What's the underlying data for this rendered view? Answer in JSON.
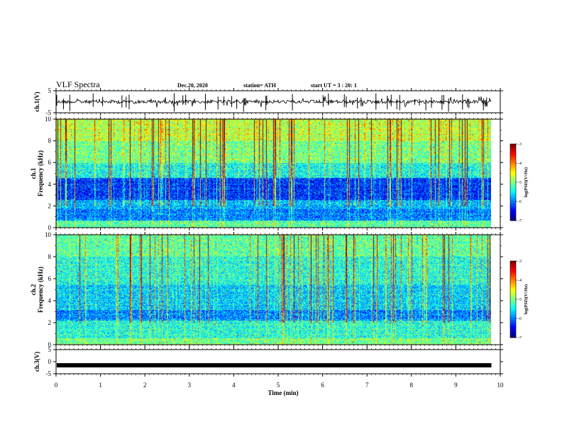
{
  "header": {
    "title": "VLF Spectra",
    "date": "Dec.20, 2020",
    "station": "station= ATH",
    "start": "start  UT =   3 : 20: 1"
  },
  "chart_data": [
    {
      "type": "line",
      "panel": "ch1-waveform",
      "ylabel": "ch.1(V)",
      "xlim": [
        0,
        10
      ],
      "ylim": [
        -5,
        5
      ],
      "yticks": [
        "5",
        "-5"
      ],
      "trace_level": 0,
      "data_end": 9.8
    },
    {
      "type": "heatmap",
      "panel": "ch1-spectrogram",
      "ylabel": "ch.1\nFrequency (kHz)",
      "xlim": [
        0,
        10
      ],
      "ylim": [
        0,
        10
      ],
      "yticks": [
        "0",
        "2",
        "4",
        "6",
        "8",
        "10"
      ],
      "data_end": 9.8,
      "colorscale": [
        "#000080",
        "#0000ff",
        "#0080ff",
        "#00ffff",
        "#80ff80",
        "#ffff00",
        "#ff8000",
        "#ff0000",
        "#800000"
      ],
      "colorbar": {
        "range": [
          -7,
          -3
        ],
        "ticks": [
          "-3",
          "-4",
          "-5",
          "-6",
          "-7"
        ],
        "label": "log(PSD)(V²/Hz)"
      }
    },
    {
      "type": "heatmap",
      "panel": "ch2-spectrogram",
      "ylabel": "ch.2\nFrequency (kHz)",
      "xlim": [
        0,
        10
      ],
      "ylim": [
        0,
        10
      ],
      "yticks": [
        "0",
        "2",
        "4",
        "6",
        "8",
        "10"
      ],
      "data_end": 9.8,
      "colorscale": [
        "#000080",
        "#0000ff",
        "#0080ff",
        "#00ffff",
        "#80ff80",
        "#ffff00",
        "#ff8000",
        "#ff0000",
        "#800000"
      ],
      "colorbar": {
        "range": [
          -7,
          -3
        ],
        "ticks": [
          "-3",
          "-4",
          "-5",
          "-6",
          "-7"
        ],
        "label": "log(PSD)(V²/Hz)"
      }
    },
    {
      "type": "line",
      "panel": "ch3-waveform",
      "ylabel": "ch.3(V)",
      "xlim": [
        0,
        10
      ],
      "ylim": [
        -5,
        5
      ],
      "yticks": [
        "5",
        "0",
        "-5"
      ],
      "trace_level": -1.5,
      "data_end": 9.8
    }
  ],
  "xaxis": {
    "label": "Time (min)",
    "ticks": [
      "0",
      "1",
      "2",
      "3",
      "4",
      "5",
      "6",
      "7",
      "8",
      "9",
      "10"
    ]
  }
}
